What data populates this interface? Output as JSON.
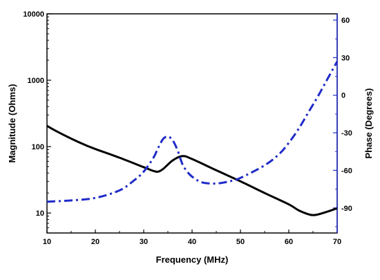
{
  "chart_data": {
    "type": "line",
    "title": "",
    "xlabel": "Frequency (MHz)",
    "ylabel_left": "Magnitude (Ohms)",
    "ylabel_right": "Phase (Degrees)",
    "xlim": [
      10,
      70
    ],
    "ylim_left": [
      5,
      10000
    ],
    "ylim_right": [
      -110,
      65
    ],
    "left_scale": "log",
    "right_scale": "linear",
    "x_ticks": [
      10,
      20,
      30,
      40,
      50,
      60,
      70
    ],
    "x_tick_labels": [
      "10",
      "20",
      "30",
      "40",
      "50",
      "60",
      "70"
    ],
    "left_ticks": [
      10,
      100,
      1000,
      10000
    ],
    "left_tick_labels": [
      "10",
      "100",
      "1000",
      "10000"
    ],
    "right_ticks": [
      -90,
      -60,
      -30,
      0,
      30,
      60
    ],
    "right_tick_labels": [
      "-90",
      "-60",
      "-30",
      "0",
      "30",
      "60"
    ],
    "grid": false,
    "series": [
      {
        "axis": "left",
        "color": "#000000",
        "style": "solid",
        "x": [
          10,
          12,
          15,
          18,
          20,
          25,
          30,
          32,
          33,
          34,
          36,
          38,
          40,
          45,
          50,
          55,
          60,
          62,
          64,
          65,
          66,
          68,
          70
        ],
        "y": [
          205,
          170,
          132,
          105,
          92,
          68,
          49,
          43,
          42,
          46,
          62,
          72,
          65,
          44,
          30,
          20,
          13.5,
          11,
          9.6,
          9.3,
          9.5,
          10.5,
          11.8
        ]
      },
      {
        "axis": "right",
        "color": "#1f2bc8",
        "style": "dashdot",
        "x": [
          10,
          15,
          20,
          25,
          28,
          30,
          32,
          33,
          34,
          35,
          36,
          37,
          38,
          39,
          40,
          42,
          45,
          48,
          50,
          55,
          58,
          60,
          62,
          64,
          66,
          68,
          70
        ],
        "y": [
          -85,
          -84,
          -82,
          -76,
          -68,
          -61,
          -50,
          -42,
          -35,
          -33,
          -36,
          -44,
          -55,
          -61,
          -65,
          -69.5,
          -70.5,
          -68.5,
          -66,
          -56,
          -47,
          -38,
          -27,
          -14,
          -1,
          13,
          27
        ]
      }
    ]
  }
}
